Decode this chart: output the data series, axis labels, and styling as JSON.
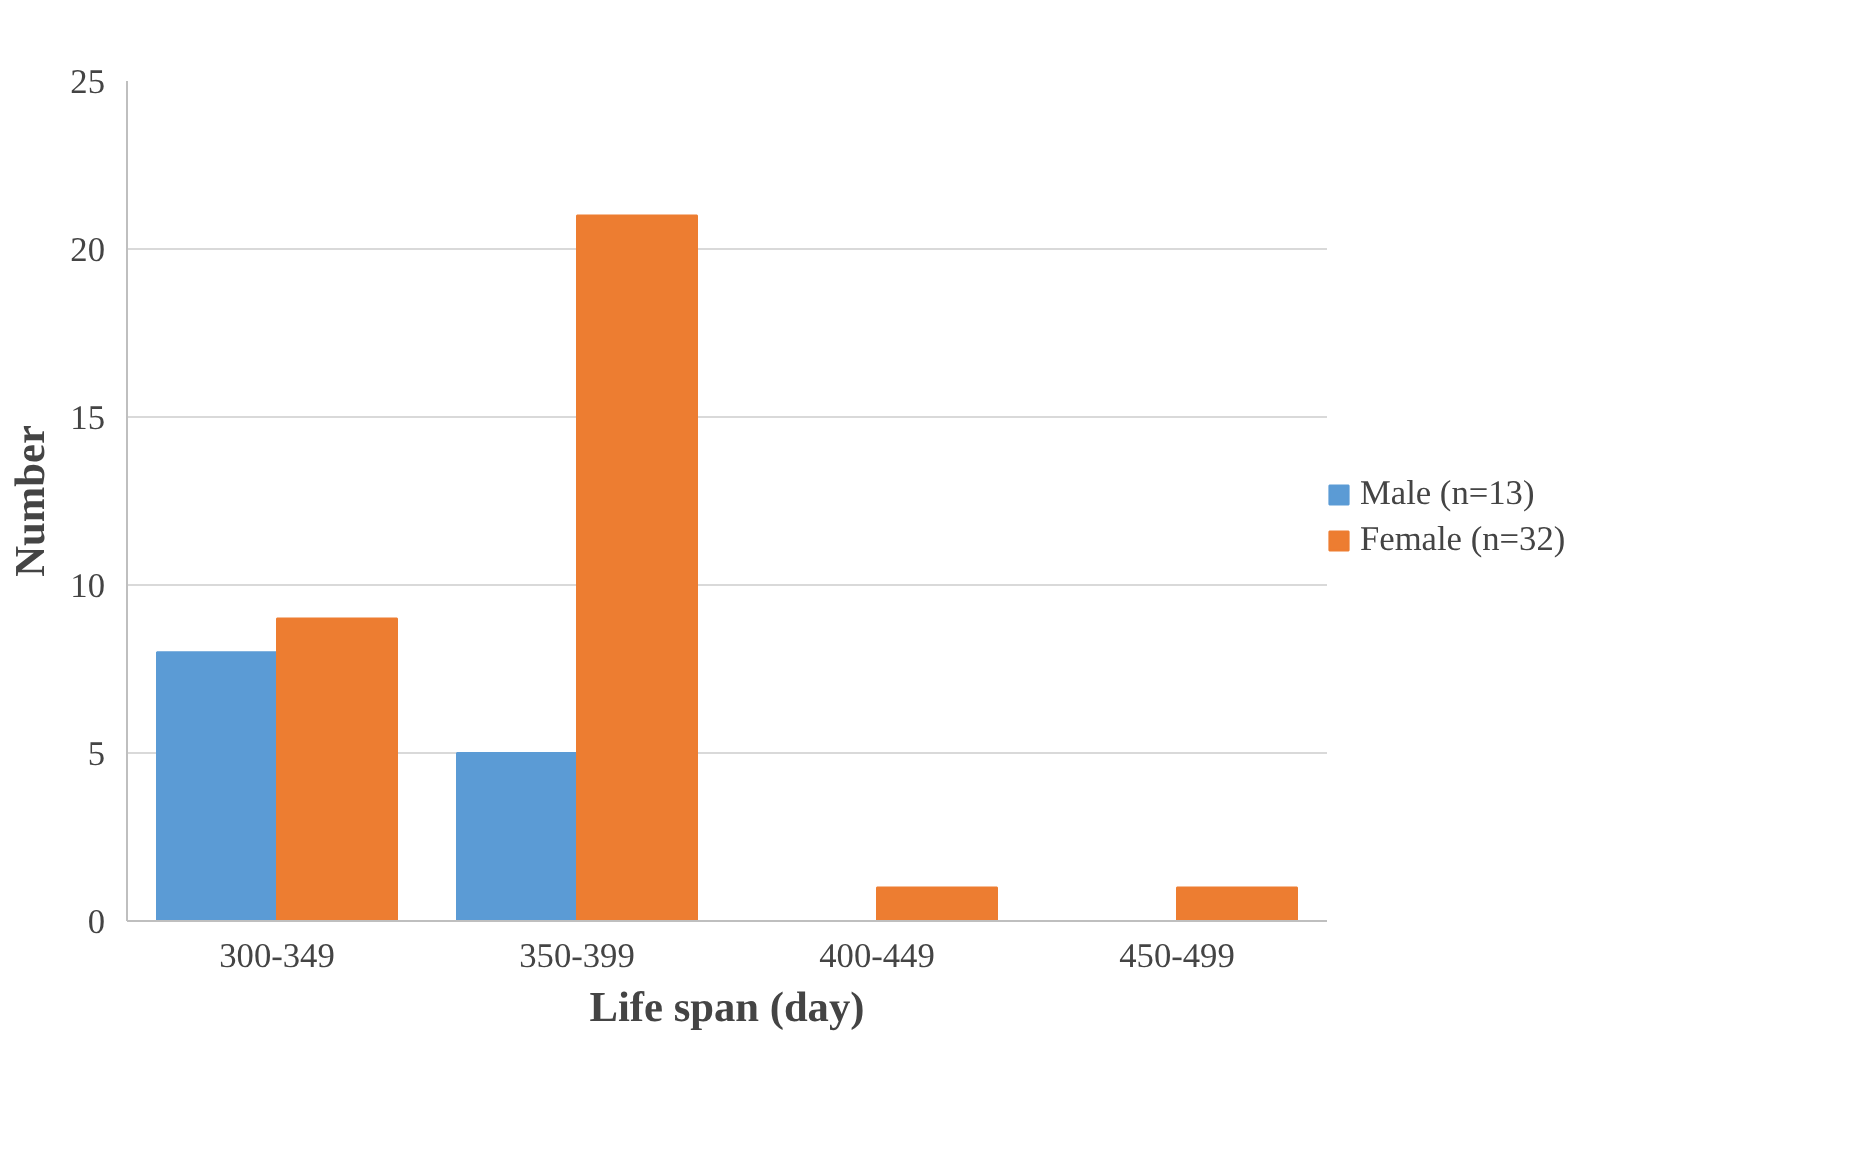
{
  "chart_data": {
    "type": "bar",
    "xlabel": "Life span (day)",
    "ylabel": "Number",
    "categories": [
      "300-349",
      "350-399",
      "400-449",
      "450-499"
    ],
    "series": [
      {
        "name": "Male (n=13)",
        "color": "#5b9bd5",
        "values": [
          8,
          5,
          0,
          0
        ]
      },
      {
        "name": "Female (n=32)",
        "color": "#ed7d31",
        "values": [
          9,
          21,
          1,
          1
        ]
      }
    ],
    "ylim": [
      0,
      25
    ],
    "yticks": [
      0,
      5,
      10,
      15,
      20,
      25
    ],
    "grid": "y",
    "legend": "right"
  }
}
